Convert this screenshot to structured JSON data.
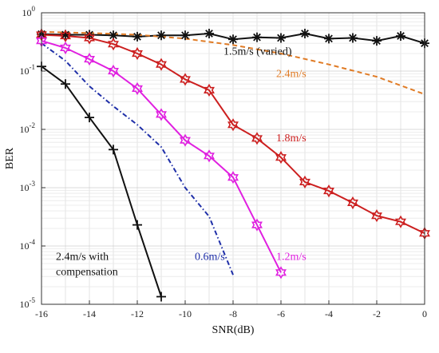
{
  "chart_data": {
    "type": "line",
    "title": "",
    "xlabel": "SNR(dB)",
    "ylabel": "BER",
    "xlim": [
      -16,
      0
    ],
    "ylim": [
      1e-05,
      1
    ],
    "yscale": "log",
    "grid": true,
    "x_ticks": [
      "-16",
      "-14",
      "-12",
      "-10",
      "-8",
      "-6",
      "-4",
      "-2",
      "0"
    ],
    "y_ticks": [
      {
        "base": "10",
        "exp": "0"
      },
      {
        "base": "10",
        "exp": "-1"
      },
      {
        "base": "10",
        "exp": "-2"
      },
      {
        "base": "10",
        "exp": "-3"
      },
      {
        "base": "10",
        "exp": "-4"
      },
      {
        "base": "10",
        "exp": "-5"
      }
    ],
    "series": [
      {
        "name": "1.5m/s (varied)",
        "color": "#111111",
        "line": "solid",
        "marker": "asterisk",
        "x": [
          -16,
          -15,
          -14,
          -13,
          -12,
          -11,
          -10,
          -9,
          -8,
          -7,
          -6,
          -5,
          -4,
          -3,
          -2,
          -1,
          0
        ],
        "y": [
          0.43,
          0.42,
          0.42,
          0.41,
          0.39,
          0.41,
          0.41,
          0.44,
          0.35,
          0.38,
          0.37,
          0.44,
          0.36,
          0.37,
          0.33,
          0.4,
          0.3
        ]
      },
      {
        "name": "2.4m/s",
        "color": "#e07b25",
        "line": "dashed",
        "marker": "none",
        "x": [
          -16,
          -14,
          -12,
          -10,
          -8,
          -6,
          -4,
          -2,
          0
        ],
        "y": [
          0.47,
          0.45,
          0.42,
          0.36,
          0.28,
          0.2,
          0.13,
          0.08,
          0.04
        ]
      },
      {
        "name": "1.8m/s",
        "color": "#cc1f1f",
        "line": "solid",
        "marker": "star",
        "x": [
          -16,
          -15,
          -14,
          -13,
          -12,
          -11,
          -10,
          -9,
          -8,
          -7,
          -6,
          -5,
          -4,
          -3,
          -2,
          -1,
          0
        ],
        "y": [
          0.42,
          0.4,
          0.37,
          0.29,
          0.2,
          0.13,
          0.072,
          0.047,
          0.012,
          0.007,
          0.0033,
          0.00125,
          0.00088,
          0.00055,
          0.00033,
          0.00026,
          0.000165
        ]
      },
      {
        "name": "1.2m/s",
        "color": "#e020e0",
        "line": "solid",
        "marker": "star",
        "x": [
          -16,
          -15,
          -14,
          -13,
          -12,
          -11,
          -10,
          -9,
          -8,
          -7,
          -6
        ],
        "y": [
          0.33,
          0.25,
          0.16,
          0.1,
          0.05,
          0.018,
          0.0065,
          0.0035,
          0.0015,
          0.00023,
          3.5e-05
        ]
      },
      {
        "name": "0.6m/s",
        "color": "#1f2fa8",
        "line": "dashdot",
        "marker": "none",
        "x": [
          -16,
          -15,
          -14,
          -13,
          -12,
          -11,
          -10,
          -9,
          -8
        ],
        "y": [
          0.3,
          0.15,
          0.055,
          0.025,
          0.012,
          0.005,
          0.001,
          0.00032,
          3.2e-05
        ]
      },
      {
        "name": "2.4m/s with compensation",
        "color": "#111111",
        "line": "solid",
        "marker": "plus",
        "x": [
          -16,
          -15,
          -14,
          -13,
          -12,
          -11
        ],
        "y": [
          0.12,
          0.06,
          0.016,
          0.0045,
          0.00023,
          1.35e-05
        ]
      }
    ],
    "annotations": [
      {
        "lines": [
          "1.5m/s (varied)"
        ],
        "color": "#111111",
        "x": -8.4,
        "y": 0.19
      },
      {
        "lines": [
          "2.4m/s"
        ],
        "color": "#e07b25",
        "x": -6.2,
        "y": 0.079
      },
      {
        "lines": [
          "1.8m/s"
        ],
        "color": "#cc1f1f",
        "x": -6.2,
        "y": 0.0062
      },
      {
        "lines": [
          "1.2m/s"
        ],
        "color": "#e020e0",
        "x": -6.2,
        "y": 5.8e-05
      },
      {
        "lines": [
          "0.6m/s"
        ],
        "color": "#1f2fa8",
        "x": -9.6,
        "y": 5.8e-05
      },
      {
        "lines": [
          "2.4m/s with",
          "compensation"
        ],
        "color": "#111111",
        "x": -15.4,
        "y": 5.8e-05
      }
    ]
  }
}
